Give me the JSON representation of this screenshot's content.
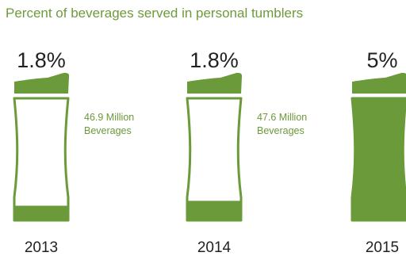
{
  "title": "Percent of beverages served in personal tumblers",
  "colors": {
    "accent": "#6b9a3a",
    "title": "#6f9a3b",
    "text": "#222222"
  },
  "chart_data": {
    "type": "bar",
    "title": "Percent of beverages served in personal tumblers",
    "categories": [
      "2013",
      "2014",
      "2015"
    ],
    "values": [
      1.8,
      1.8,
      5
    ],
    "value_labels": [
      "1.8%",
      "1.8%",
      "5%"
    ],
    "annotations": [
      {
        "category": "2013",
        "text": [
          "46.9 Million",
          "Beverages"
        ]
      },
      {
        "category": "2014",
        "text": [
          "47.6 Million",
          "Beverages"
        ]
      }
    ],
    "fill_fraction": [
      0.12,
      0.16,
      1.0
    ],
    "unit": "%"
  }
}
